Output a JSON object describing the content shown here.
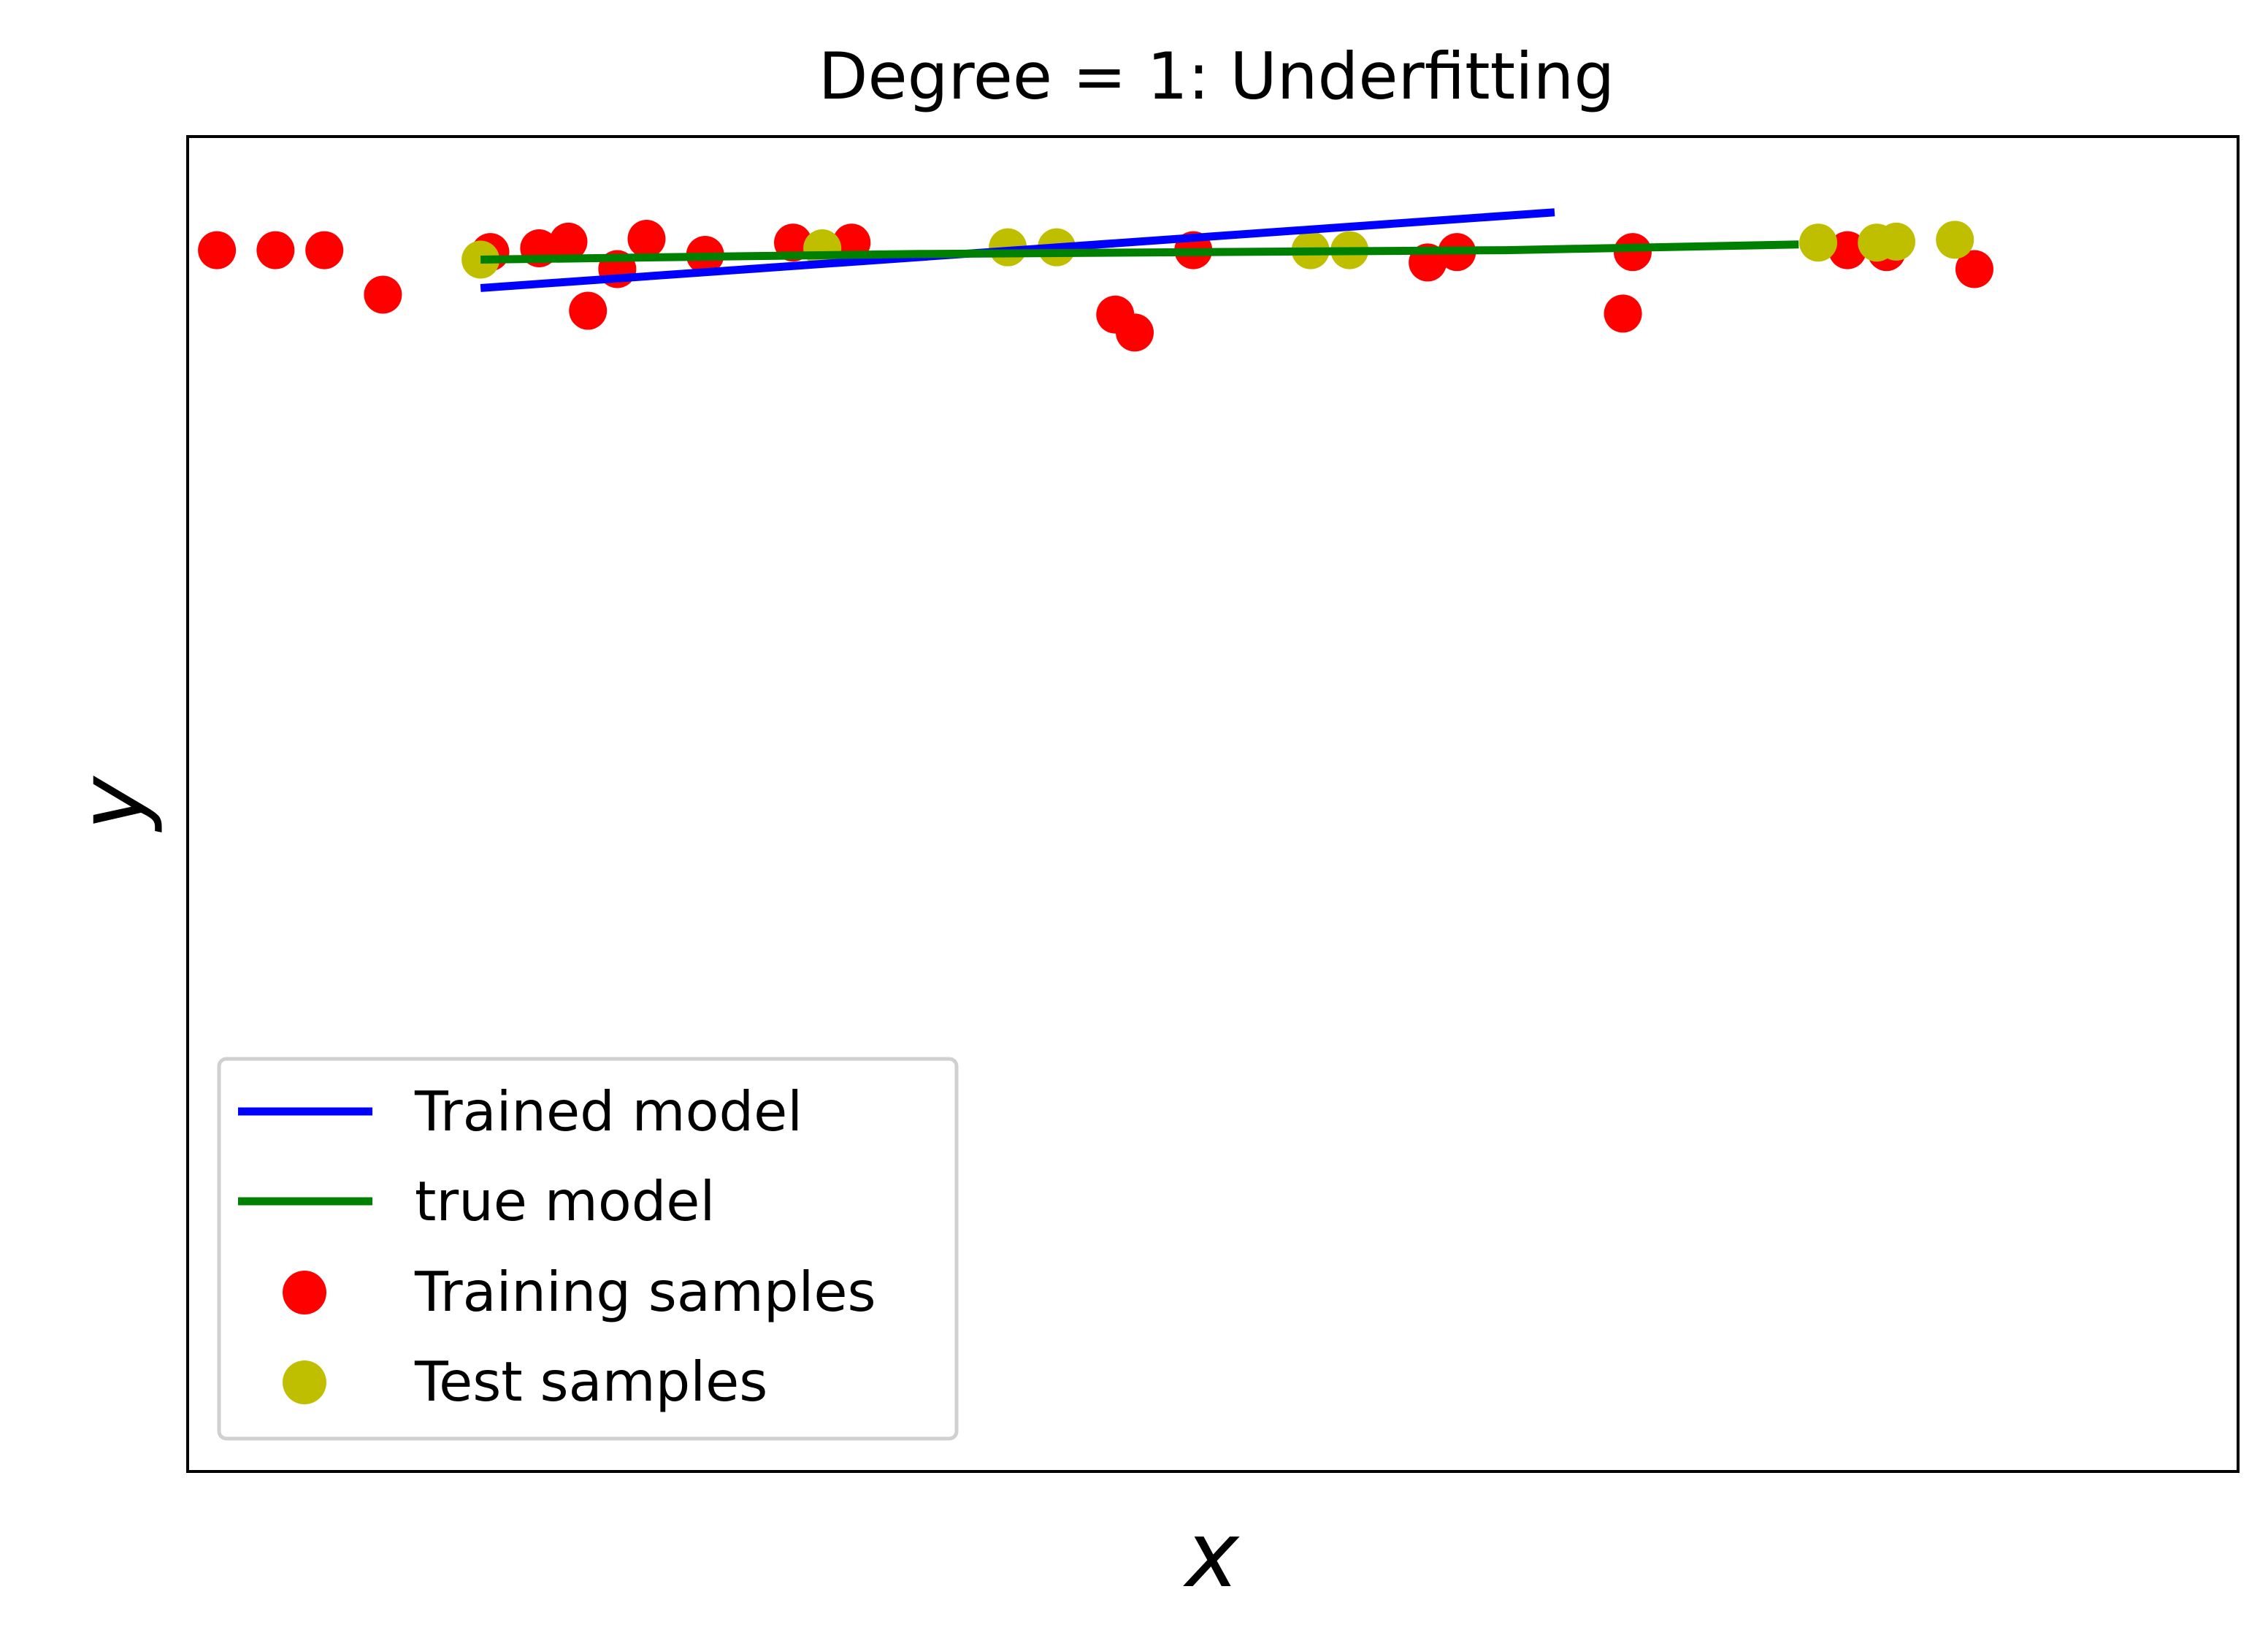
{
  "chart_data": {
    "type": "scatter",
    "title": "Degree = 1: Underfitting",
    "xlabel": "x",
    "ylabel": "y",
    "xlim": [
      -1.05,
      1.05
    ],
    "ylim": [
      -13.1,
      1.0
    ],
    "grid": false,
    "ticks_shown": false,
    "legend_position": "lower-left",
    "colors": {
      "trained_model": "#0000ff",
      "true_model": "#008000",
      "training_samples": "#ff0000",
      "test_samples": "#bfbf00"
    },
    "series": [
      {
        "name": "Trained model",
        "kind": "line",
        "color": "#0000ff",
        "x": [
          -0.75,
          0.35
        ],
        "y": [
          -0.6,
          0.2
        ]
      },
      {
        "name": "true model",
        "kind": "line",
        "color": "#008000",
        "x": [
          -0.75,
          -0.3,
          0.0,
          0.3,
          0.6
        ],
        "y": [
          -0.3,
          -0.24,
          -0.22,
          -0.2,
          -0.14
        ]
      },
      {
        "name": "Training samples",
        "kind": "scatter",
        "color": "#ff0000",
        "x": [
          -1.02,
          -0.96,
          -0.91,
          -0.85,
          -0.74,
          -0.69,
          -0.66,
          -0.64,
          -0.61,
          -0.58,
          -0.52,
          -0.43,
          -0.37,
          -0.02,
          -0.1,
          -0.08,
          0.22,
          0.25,
          0.42,
          0.43,
          0.65,
          0.69,
          0.78
        ],
        "y": [
          -0.2,
          -0.2,
          -0.2,
          -0.67,
          -0.22,
          -0.18,
          -0.11,
          -0.84,
          -0.4,
          -0.08,
          -0.25,
          -0.12,
          -0.12,
          -0.2,
          -0.88,
          -1.07,
          -0.33,
          -0.22,
          -0.87,
          -0.22,
          -0.2,
          -0.22,
          -0.4
        ]
      },
      {
        "name": "Test samples",
        "kind": "scatter",
        "color": "#bfbf00",
        "x": [
          -0.75,
          -0.4,
          -0.21,
          -0.16,
          0.1,
          0.14,
          0.62,
          0.68,
          0.7,
          0.76
        ],
        "y": [
          -0.3,
          -0.18,
          -0.17,
          -0.17,
          -0.2,
          -0.2,
          -0.12,
          -0.12,
          -0.11,
          -0.09
        ]
      }
    ]
  }
}
